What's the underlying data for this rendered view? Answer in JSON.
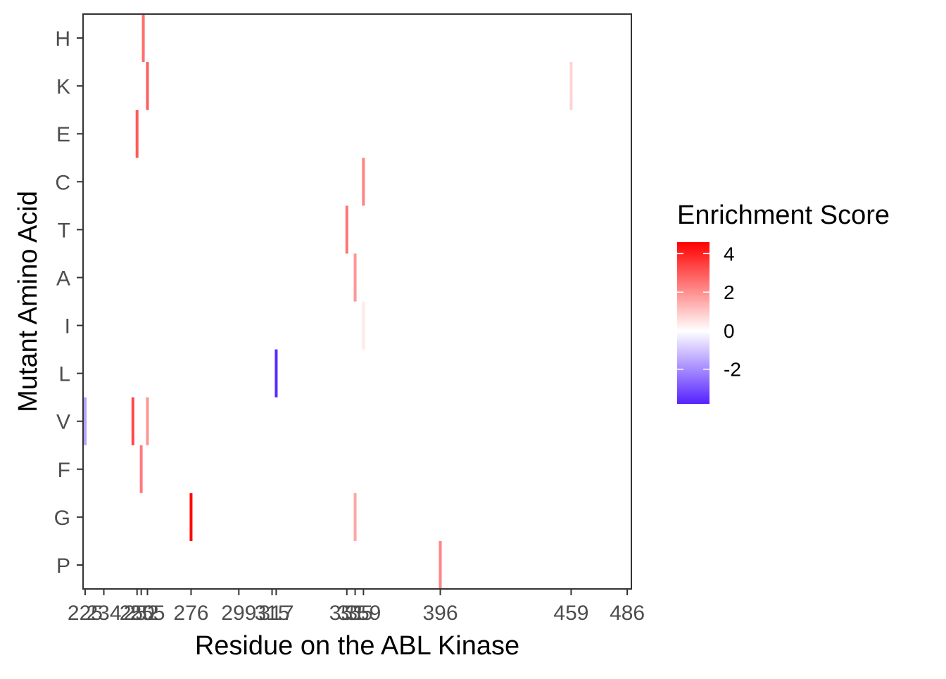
{
  "chart_data": {
    "type": "heatmap",
    "xlabel": "Residue on the ABL Kinase",
    "ylabel": "Mutant Amino Acid",
    "xlim": [
      224,
      488
    ],
    "x_ticks": [
      225,
      234,
      250,
      252,
      255,
      276,
      299,
      315,
      317,
      351,
      355,
      359,
      396,
      459,
      486
    ],
    "y_categories": [
      "H",
      "K",
      "E",
      "C",
      "T",
      "A",
      "I",
      "L",
      "V",
      "F",
      "G",
      "P"
    ],
    "cells": [
      {
        "x": 253,
        "y": "H",
        "value": 2.6
      },
      {
        "x": 255,
        "y": "K",
        "value": 2.9
      },
      {
        "x": 459,
        "y": "K",
        "value": 0.8
      },
      {
        "x": 250,
        "y": "E",
        "value": 3.0
      },
      {
        "x": 359,
        "y": "C",
        "value": 2.2
      },
      {
        "x": 351,
        "y": "T",
        "value": 2.5
      },
      {
        "x": 355,
        "y": "A",
        "value": 1.9
      },
      {
        "x": 359,
        "y": "I",
        "value": 0.4
      },
      {
        "x": 317,
        "y": "L",
        "value": -3.7
      },
      {
        "x": 225,
        "y": "V",
        "value": -1.6
      },
      {
        "x": 248,
        "y": "V",
        "value": 3.3
      },
      {
        "x": 255,
        "y": "V",
        "value": 1.9
      },
      {
        "x": 252,
        "y": "F",
        "value": 2.4
      },
      {
        "x": 276,
        "y": "G",
        "value": 4.5
      },
      {
        "x": 355,
        "y": "G",
        "value": 1.6
      },
      {
        "x": 396,
        "y": "P",
        "value": 2.2
      }
    ],
    "grid": false,
    "legend": {
      "title": "Enrichment Score",
      "position": "right",
      "ticks": [
        4,
        2,
        0,
        -2
      ],
      "range": [
        -3.8,
        4.6
      ],
      "colors": {
        "low": "#5522ff",
        "mid": "#ffffff",
        "high": "#ff0000"
      }
    }
  }
}
